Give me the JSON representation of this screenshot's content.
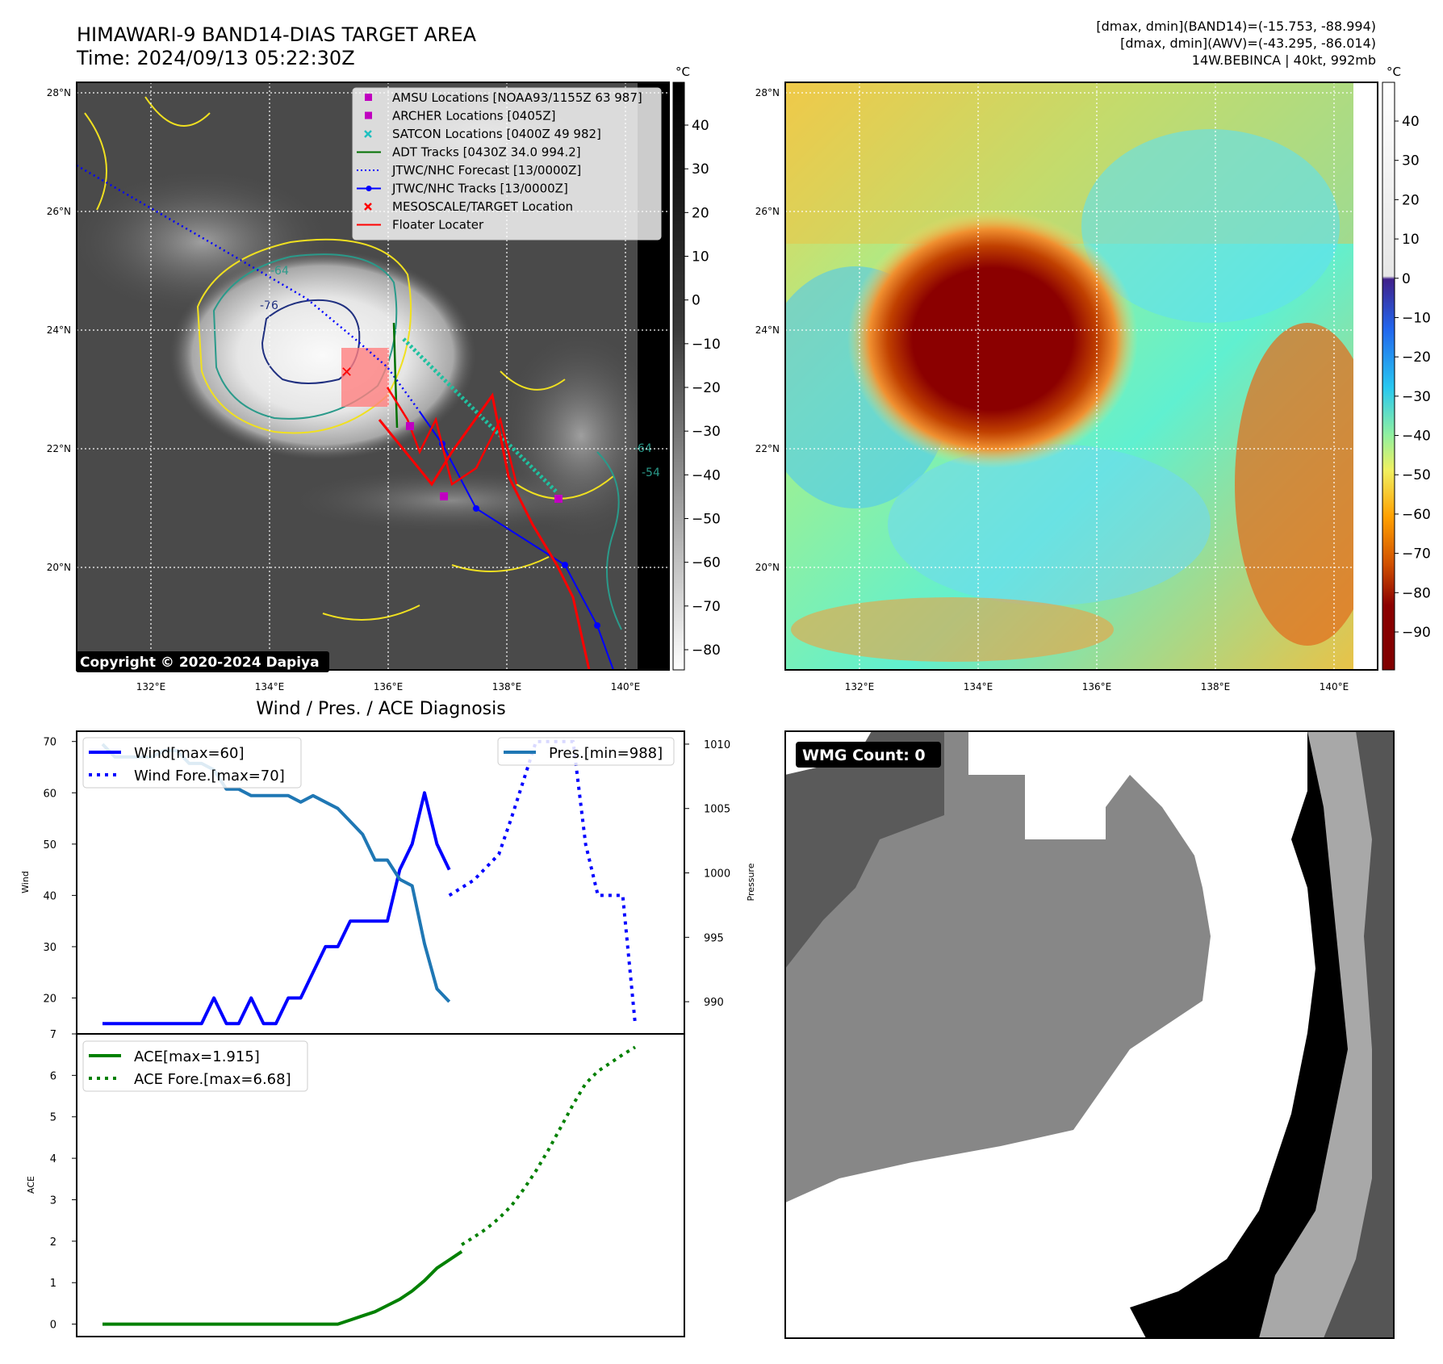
{
  "header": {
    "title_line1": "HIMAWARI-9 BAND14-DIAS TARGET AREA",
    "title_line2": "Time: 2024/09/13 05:22:30Z",
    "info_line1": "[dmax, dmin](BAND14)=(-15.753, -88.994)",
    "info_line2": "[dmax, dmin](AWV)=(-43.295, -86.014)",
    "info_line3": "14W.BEBINCA | 40kt, 992mb"
  },
  "copyright": "Copyright © 2020-2024 Dapiya",
  "map": {
    "lat_labels": [
      "28°N",
      "26°N",
      "24°N",
      "22°N",
      "20°N"
    ],
    "lon_labels": [
      "132°E",
      "134°E",
      "136°E",
      "138°E",
      "140°E"
    ],
    "contour_labels": [
      "-76",
      "-64",
      "-54",
      "-64"
    ],
    "legend": [
      {
        "label": "AMSU Locations [NOAA93/1155Z 63 987]",
        "color": "#c000c0",
        "icon": "square-marker"
      },
      {
        "label": "ARCHER Locations [0405Z]",
        "color": "#c000c0",
        "icon": "square-marker"
      },
      {
        "label": "SATCON Locations [0400Z 49 982]",
        "color": "#20c0c0",
        "icon": "x-marker"
      },
      {
        "label": "ADT Tracks [0430Z 34.0 994.2]",
        "color": "#007000",
        "icon": "solid-line"
      },
      {
        "label": "JTWC/NHC Forecast [13/0000Z]",
        "color": "#0000ff",
        "icon": "dotted-line"
      },
      {
        "label": "JTWC/NHC Tracks [13/0000Z]",
        "color": "#0000ff",
        "icon": "line-dot"
      },
      {
        "label": "MESOSCALE/TARGET Location",
        "color": "#ff0000",
        "icon": "x-marker"
      },
      {
        "label": "Floater Locater",
        "color": "#ff0000",
        "icon": "solid-line"
      }
    ]
  },
  "colorbar_left": {
    "unit": "°C",
    "ticks": [
      "40",
      "30",
      "20",
      "10",
      "0",
      "−10",
      "−20",
      "−30",
      "−40",
      "−50",
      "−60",
      "−70",
      "−80"
    ]
  },
  "colorbar_right": {
    "unit": "°C",
    "ticks": [
      "40",
      "30",
      "20",
      "10",
      "0",
      "−10",
      "−20",
      "−30",
      "−40",
      "−50",
      "−60",
      "−70",
      "−80",
      "−90"
    ]
  },
  "wmg": {
    "label": "WMG Count: 0"
  },
  "chart_data": [
    {
      "type": "line",
      "title": "Wind / Pres. / ACE Diagnosis",
      "ylabel": "Wind",
      "y2label": "Pressure",
      "ylim": [
        13,
        72
      ],
      "y2lim": [
        987.5,
        1011
      ],
      "yticks": [
        20,
        30,
        40,
        50,
        60,
        70
      ],
      "y2ticks": [
        990,
        995,
        1000,
        1005,
        1010
      ],
      "x_count": 35,
      "series": [
        {
          "name": "Wind[max=60]",
          "color": "#0000ff",
          "style": "solid",
          "x": [
            0,
            1,
            2,
            3,
            4,
            5,
            6,
            7,
            8,
            9,
            10,
            11,
            12,
            13,
            14,
            15,
            16,
            17,
            18,
            19,
            20,
            21,
            22,
            23,
            24,
            25,
            26,
            27,
            28
          ],
          "values": [
            15,
            15,
            15,
            15,
            15,
            15,
            15,
            15,
            15,
            20,
            15,
            15,
            20,
            15,
            15,
            20,
            20,
            25,
            30,
            30,
            35,
            35,
            35,
            35,
            45,
            50,
            60,
            50,
            45
          ]
        },
        {
          "name": "Wind Fore.[max=70]",
          "color": "#0000ff",
          "style": "dotted",
          "x": [
            28,
            30,
            32,
            33,
            35,
            38,
            39,
            40,
            41,
            42,
            43
          ],
          "values": [
            40,
            43,
            48,
            55,
            70,
            70,
            50,
            40,
            40,
            40,
            15
          ]
        },
        {
          "name": "Pres.[min=988]",
          "color": "#1f77b4",
          "style": "solid",
          "axis": "y2",
          "x": [
            0,
            1,
            2,
            3,
            4,
            5,
            6,
            7,
            8,
            9,
            10,
            11,
            12,
            13,
            14,
            15,
            16,
            17,
            18,
            19,
            20,
            21,
            22,
            23,
            24,
            25,
            26,
            27,
            28
          ],
          "values": [
            1010,
            1009,
            1009,
            1009,
            1009,
            1009.5,
            1009.5,
            1008.5,
            1008.5,
            1008,
            1006.5,
            1006.5,
            1006,
            1006,
            1006,
            1006,
            1005.5,
            1006,
            1005.5,
            1005,
            1004,
            1003,
            1001,
            1001,
            999.5,
            999,
            994.5,
            991,
            990
          ]
        }
      ]
    },
    {
      "type": "line",
      "ylabel": "ACE",
      "ylim": [
        -0.3,
        7
      ],
      "yticks": [
        0,
        1,
        2,
        3,
        4,
        5,
        6,
        7
      ],
      "series": [
        {
          "name": "ACE[max=1.915]",
          "color": "#008000",
          "style": "solid",
          "x": [
            0,
            19,
            20,
            21,
            22,
            23,
            24,
            25,
            26,
            27,
            28,
            29
          ],
          "values": [
            0,
            0,
            0.1,
            0.2,
            0.3,
            0.45,
            0.6,
            0.8,
            1.05,
            1.35,
            1.55,
            1.75
          ]
        },
        {
          "name": "ACE Fore.[max=6.68]",
          "color": "#008000",
          "style": "dotted",
          "x": [
            29,
            30,
            31,
            32,
            33,
            34,
            35,
            36,
            37,
            38,
            39,
            40,
            41,
            42,
            43
          ],
          "values": [
            1.915,
            2.1,
            2.3,
            2.55,
            2.85,
            3.25,
            3.7,
            4.2,
            4.75,
            5.3,
            5.8,
            6.1,
            6.3,
            6.5,
            6.68
          ]
        }
      ]
    }
  ]
}
